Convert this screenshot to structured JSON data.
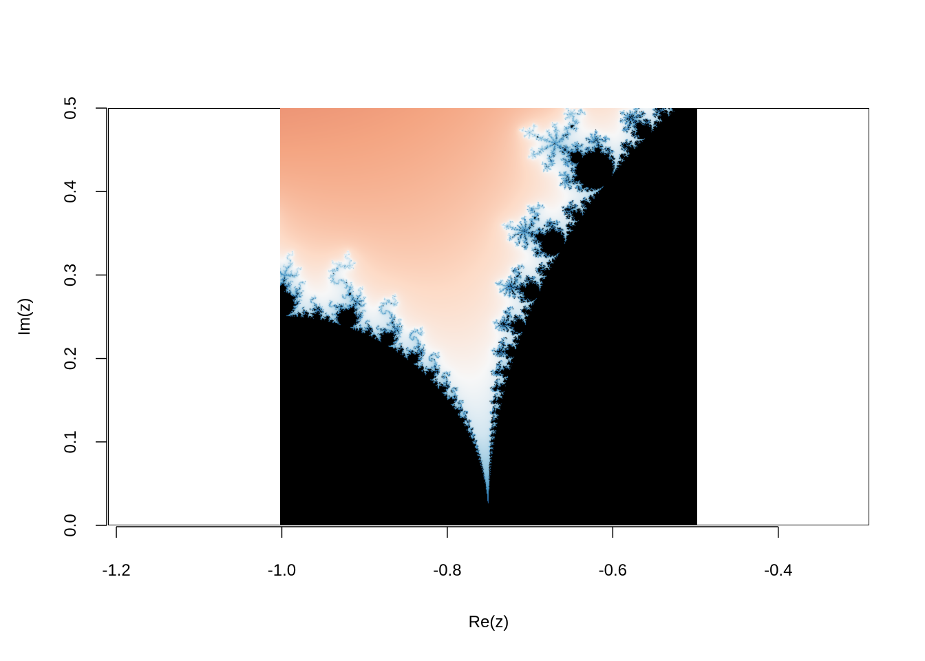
{
  "chart_data": {
    "type": "heatmap",
    "subject": "Mandelbrot set escape-time image",
    "xlabel": "Re(z)",
    "ylabel": "Im(z)",
    "xlim": [
      -1.21,
      -0.29
    ],
    "ylim": [
      0.0,
      0.5
    ],
    "x_ticks": [
      -1.2,
      -1.0,
      -0.8,
      -0.6,
      -0.4
    ],
    "x_tick_labels": [
      "-1.2",
      "-1.0",
      "-0.8",
      "-0.6",
      "-0.4"
    ],
    "y_ticks": [
      0.0,
      0.1,
      0.2,
      0.3,
      0.4,
      0.5
    ],
    "y_tick_labels": [
      "0.0",
      "0.1",
      "0.2",
      "0.3",
      "0.4",
      "0.5"
    ],
    "image_extent": {
      "re": [
        -1.0,
        -0.5
      ],
      "im": [
        0.0,
        0.5
      ]
    },
    "colormap": [
      "#000000",
      "#67001f",
      "#b2182b",
      "#d6604d",
      "#f4a582",
      "#fddbc7",
      "#f7f7f7",
      "#d1e5f0",
      "#92c5de",
      "#4393c3",
      "#2166ac"
    ],
    "inside_color": "#000000",
    "max_iterations": 120,
    "grid": false,
    "legend": "none"
  }
}
